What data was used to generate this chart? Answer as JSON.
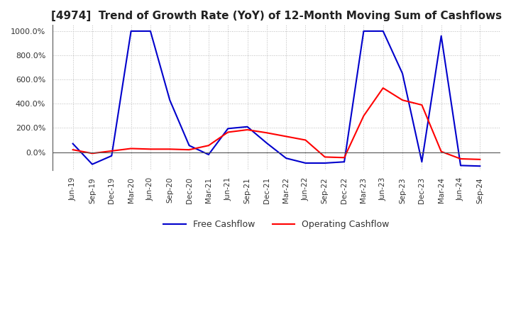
{
  "title": "[4974]  Trend of Growth Rate (YoY) of 12-Month Moving Sum of Cashflows",
  "title_fontsize": 11,
  "ylim": [
    -150,
    1050
  ],
  "yticks": [
    0.0,
    200.0,
    400.0,
    600.0,
    800.0,
    1000.0
  ],
  "ytick_labels": [
    "0.0%",
    "200.0%",
    "400.0%",
    "600.0%",
    "800.0%",
    "1000.0%"
  ],
  "background_color": "#ffffff",
  "grid_color": "#bbbbbb",
  "x_labels": [
    "Jun-19",
    "Sep-19",
    "Dec-19",
    "Mar-20",
    "Jun-20",
    "Sep-20",
    "Dec-20",
    "Mar-21",
    "Jun-21",
    "Sep-21",
    "Dec-21",
    "Mar-22",
    "Jun-22",
    "Sep-22",
    "Dec-22",
    "Mar-23",
    "Jun-23",
    "Sep-23",
    "Dec-23",
    "Mar-24",
    "Jun-24",
    "Sep-24"
  ],
  "operating_cashflow": [
    20,
    -10,
    10,
    30,
    25,
    25,
    20,
    55,
    165,
    185,
    160,
    130,
    100,
    -40,
    -45,
    300,
    530,
    430,
    390,
    5,
    -55,
    -60
  ],
  "free_cashflow": [
    70,
    -100,
    -30,
    1000,
    1000,
    430,
    55,
    -20,
    195,
    210,
    75,
    -50,
    -90,
    -90,
    -80,
    1000,
    1000,
    650,
    -80,
    960,
    -110,
    -115
  ],
  "operating_color": "#ff0000",
  "free_color": "#0000cc",
  "line_width": 1.5
}
